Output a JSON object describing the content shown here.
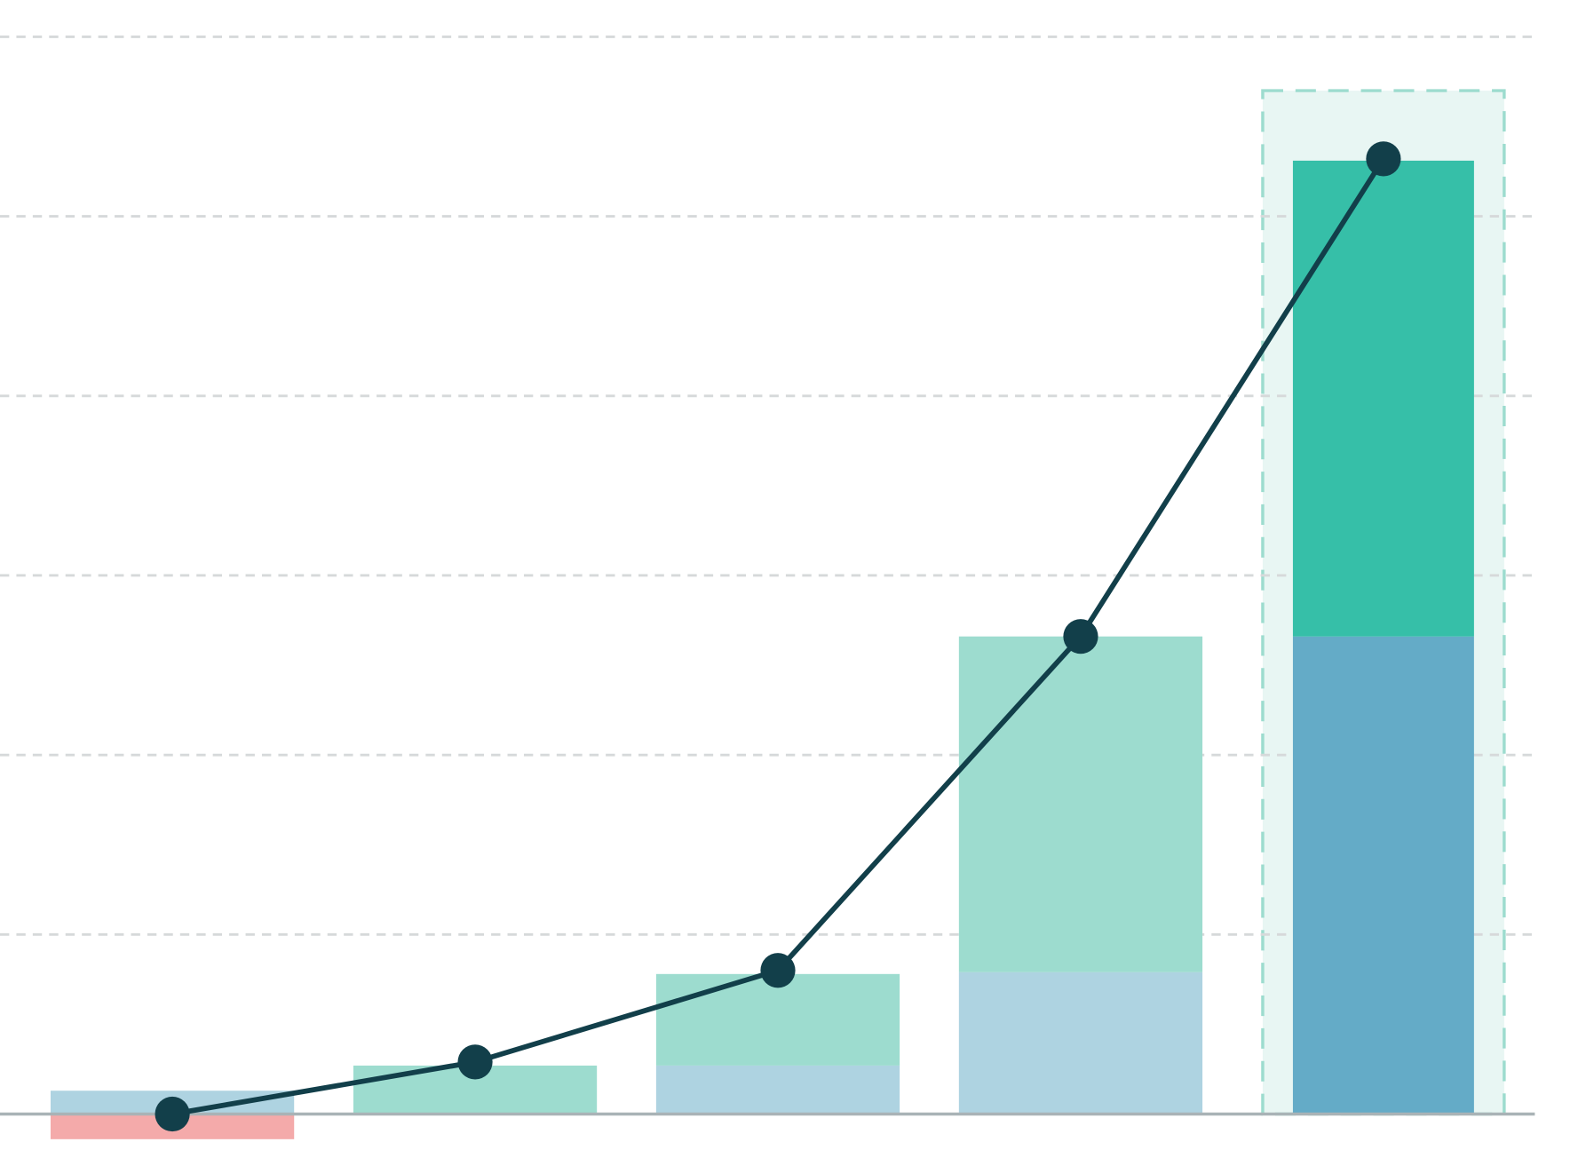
{
  "chart_data": {
    "type": "bar",
    "stacked": true,
    "categories": [
      null,
      null,
      null,
      null,
      null
    ],
    "ylim": [
      -0.24,
      6.2
    ],
    "yticks": [
      1,
      2,
      3,
      4,
      5,
      6
    ],
    "grid": true,
    "highlight_index": 4,
    "highlight_color": "#e8f6f3",
    "highlight_border": "#9ddccf",
    "series": [
      {
        "type": "bar",
        "color": "#aed3e1",
        "colors": [
          "#aed3e1",
          "#aed3e1",
          "#aed3e1",
          "#aed3e1",
          "#64abc7"
        ],
        "values": [
          0.13,
          0,
          0.27,
          0.79,
          2.66
        ]
      },
      {
        "type": "bar",
        "color": "#9ddccf",
        "colors": [
          "#9ddccf",
          "#9ddccf",
          "#9ddccf",
          "#9ddccf",
          "#36bfa8"
        ],
        "values": [
          0,
          0.27,
          0.51,
          1.87,
          2.65
        ]
      },
      {
        "type": "bar",
        "color": "#f4aaaa",
        "values": [
          -0.14,
          null,
          null,
          null,
          null
        ]
      },
      {
        "type": "line",
        "color": "#123f4a",
        "values": [
          0.0,
          0.29,
          0.8,
          2.66,
          5.32
        ]
      }
    ]
  }
}
